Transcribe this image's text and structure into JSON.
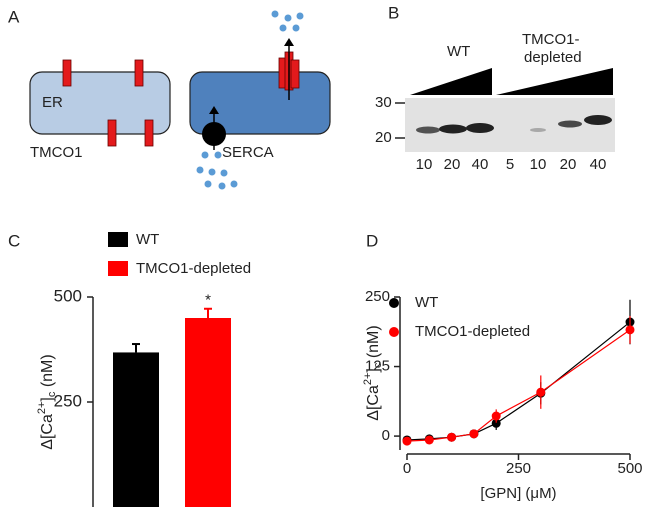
{
  "panel_a": {
    "label": "A",
    "er_label": "ER",
    "tmco1_label": "TMCO1",
    "serca_label": "SERCA"
  },
  "panel_b": {
    "label": "B",
    "group1": "WT",
    "group2_line1": "TMCO1-",
    "group2_line2": "depleted",
    "mw_labels": [
      "30",
      "20"
    ],
    "lanes": [
      "10",
      "20",
      "40",
      "5",
      "10",
      "20",
      "40"
    ]
  },
  "chart_data": [
    {
      "type": "bar",
      "panel": "C",
      "categories": [
        "WT",
        "TMCO1-depleted"
      ],
      "values": [
        368,
        450
      ],
      "errors": [
        20,
        22
      ],
      "colors": [
        "#000000",
        "#ff0000"
      ],
      "ylim": [
        0,
        500
      ],
      "yticks": [
        250,
        500
      ],
      "annotation": "*",
      "ylabel": {
        "base": "Δ[Ca",
        "sup": "2+",
        "mid": "]",
        "sub": "c",
        "end": " (nM)"
      }
    },
    {
      "type": "line",
      "panel": "D",
      "xlabel": "[GPN] (μM)",
      "ylabel": {
        "base": "Δ[Ca",
        "sup": "2+",
        "mid": "]",
        "sub": "c",
        "end": " (nM)"
      },
      "x": [
        0,
        50,
        100,
        150,
        200,
        300,
        500
      ],
      "xlim": [
        0,
        500
      ],
      "xticks": [
        0,
        250,
        500
      ],
      "ylim": [
        -25,
        250
      ],
      "yticks": [
        0,
        125,
        250
      ],
      "series": [
        {
          "name": "WT",
          "color": "#000000",
          "values": [
            -7,
            -5,
            -2,
            4,
            23,
            77,
            205
          ],
          "errors": [
            3,
            3,
            3,
            3,
            12,
            20,
            40
          ]
        },
        {
          "name": "TMCO1-depleted",
          "color": "#ff0000",
          "values": [
            -9,
            -7,
            -2,
            4,
            36,
            79,
            191
          ],
          "errors": [
            3,
            3,
            3,
            3,
            12,
            30,
            25
          ]
        }
      ]
    }
  ]
}
